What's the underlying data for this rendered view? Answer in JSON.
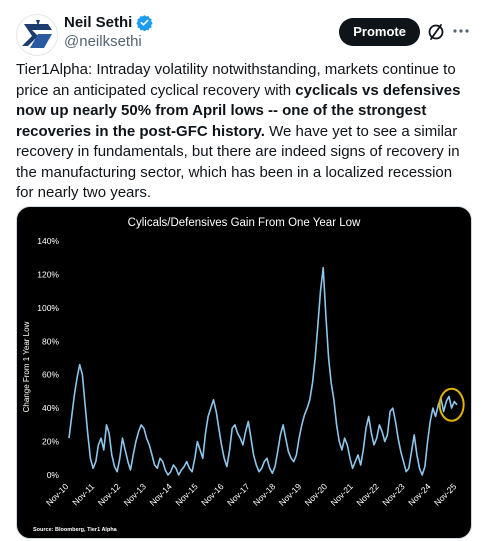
{
  "author": {
    "display_name": "Neil Sethi",
    "handle": "@neilksethi",
    "verified_color": "#1d9bf0"
  },
  "actions": {
    "promote_label": "Promote",
    "grok_icon": "grok-icon",
    "more_icon": "more-icon"
  },
  "tweet": {
    "segments": [
      {
        "text": "Tier1Alpha: Intraday volatility notwithstanding, markets continue to price an anticipated cyclical recovery with ",
        "bold": false
      },
      {
        "text": "cyclicals vs defensives now up nearly 50% from April lows -- one of the strongest recoveries in the post-GFC history.",
        "bold": true
      },
      {
        "text": " We have yet to see a similar recovery in fundamentals, but there are indeed signs of recovery in the manufacturing sector, which has been in a localized recession for nearly two years.",
        "bold": false
      }
    ]
  },
  "chart_data": {
    "type": "line",
    "title": "Cylicals/Defensives Gain From One Year Low",
    "ylabel": "Change From 1 Year Low",
    "source": "Source: Bloomberg, Tier1 Alpha",
    "ylim": [
      0,
      140
    ],
    "yticks": [
      "0%",
      "20%",
      "40%",
      "60%",
      "80%",
      "100%",
      "120%",
      "140%"
    ],
    "xticks": [
      "Nov-10",
      "Nov-11",
      "Nov-12",
      "Nov-13",
      "Nov-14",
      "Nov-15",
      "Nov-16",
      "Nov-17",
      "Nov-18",
      "Nov-19",
      "Nov-20",
      "Nov-21",
      "Nov-22",
      "Nov-23",
      "Nov-24",
      "Nov-25"
    ],
    "line_color": "#8ec5ea",
    "highlight_color": "#e0b400",
    "series": [
      {
        "values": [
          22,
          35,
          48,
          58,
          66,
          60,
          42,
          25,
          10,
          4,
          8,
          18,
          22,
          15,
          30,
          25,
          12,
          5,
          2,
          10,
          22,
          15,
          8,
          3,
          12,
          20,
          26,
          30,
          28,
          22,
          18,
          12,
          6,
          4,
          10,
          8,
          3,
          0,
          2,
          6,
          4,
          0,
          3,
          5,
          8,
          4,
          2,
          10,
          20,
          15,
          10,
          25,
          35,
          40,
          45,
          38,
          28,
          18,
          10,
          5,
          15,
          28,
          30,
          25,
          22,
          18,
          26,
          32,
          22,
          12,
          6,
          2,
          4,
          8,
          10,
          4,
          1,
          5,
          14,
          24,
          30,
          22,
          14,
          10,
          8,
          12,
          22,
          30,
          36,
          40,
          45,
          55,
          70,
          90,
          110,
          124,
          95,
          70,
          55,
          45,
          30,
          20,
          15,
          22,
          18,
          10,
          4,
          8,
          12,
          6,
          15,
          28,
          35,
          25,
          18,
          22,
          30,
          26,
          20,
          24,
          38,
          40,
          32,
          22,
          14,
          8,
          2,
          4,
          14,
          24,
          12,
          4,
          0,
          5,
          20,
          32,
          40,
          35,
          42,
          46,
          38,
          44,
          47,
          40,
          44,
          42
        ]
      }
    ]
  }
}
